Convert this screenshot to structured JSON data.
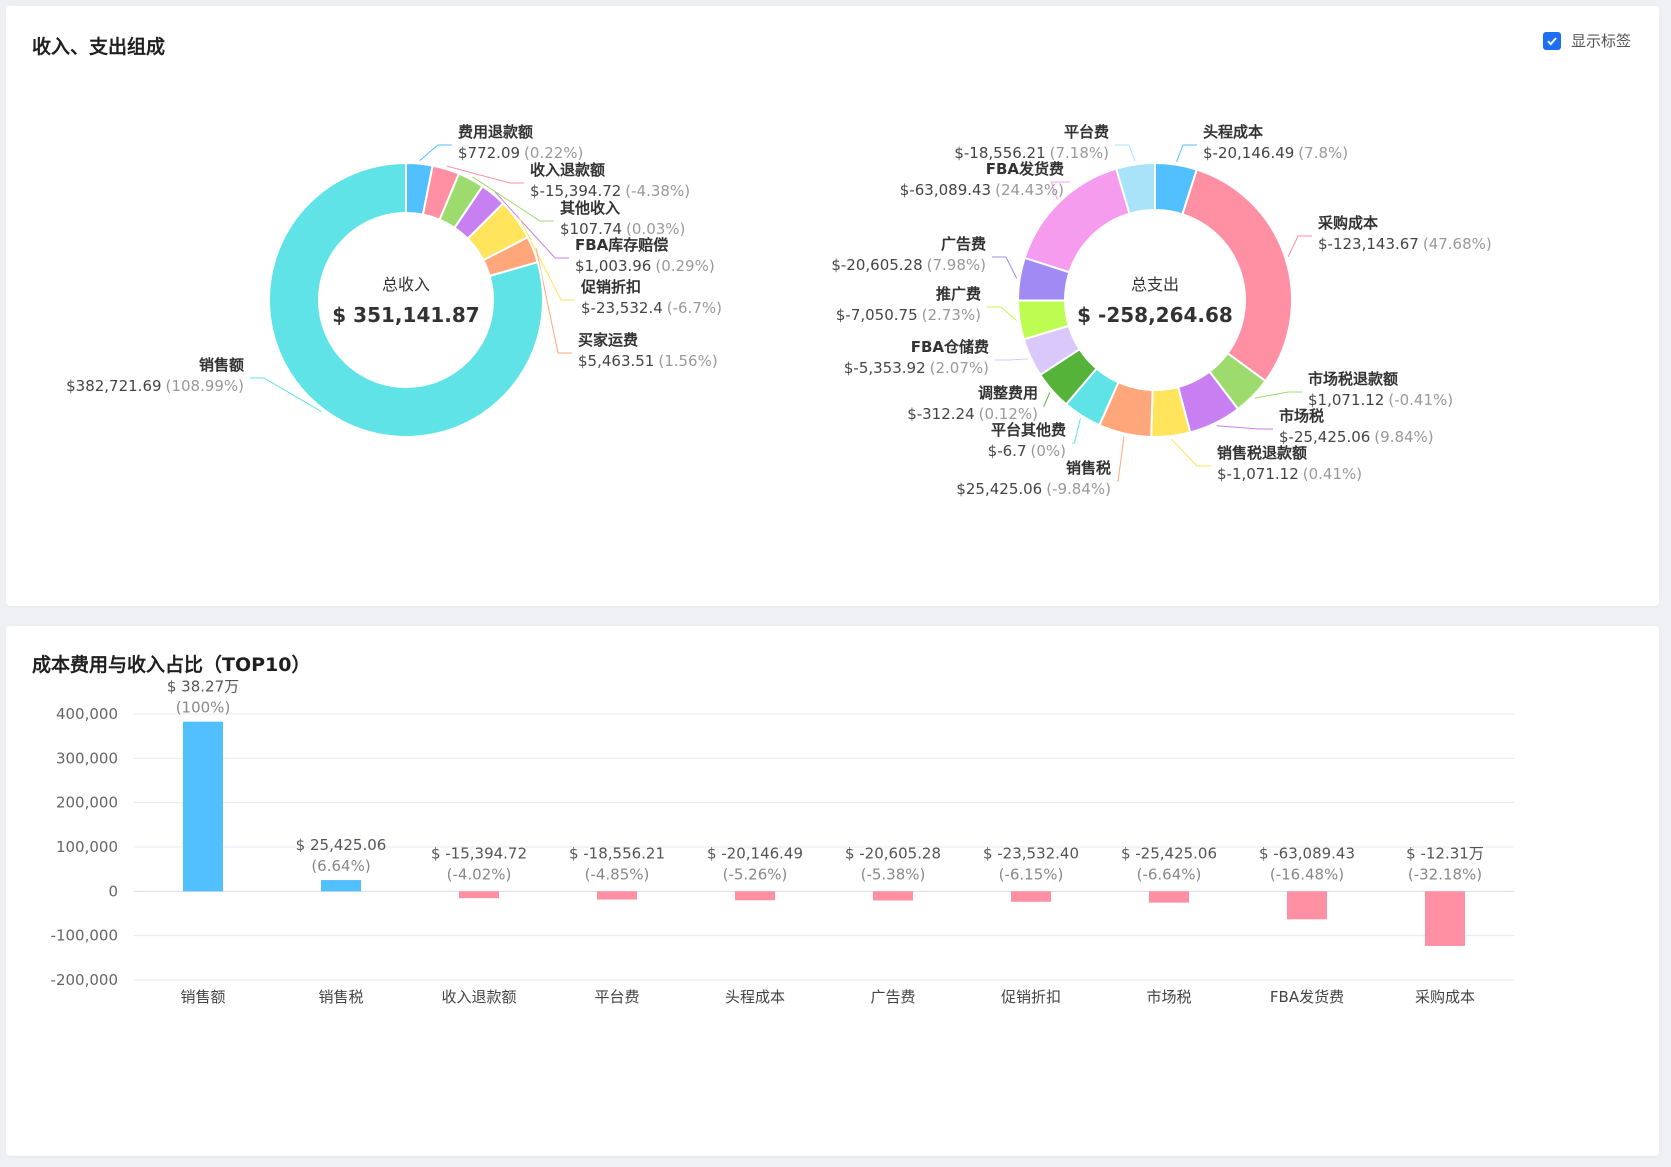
{
  "page": {
    "composition_title": "收入、支出组成",
    "show_labels_text": "显示标签",
    "top10_title": "成本费用与收入占比（TOP10）"
  },
  "colors": {
    "accent": "#1d6ff2",
    "positive_bar": "#52bfff",
    "negative_bar": "#ff8fa3"
  },
  "chart_data": [
    {
      "type": "pie",
      "variant": "donut",
      "center_title": "总收入",
      "center_value": "$ 351,141.87",
      "slices": [
        {
          "name": "费用退款额",
          "value_label": "$772.09",
          "pct_label": "(0.22%)",
          "value": 772.09,
          "color": "#52bfff"
        },
        {
          "name": "收入退款额",
          "value_label": "$-15,394.72",
          "pct_label": "(-4.38%)",
          "value": -15394.72,
          "color": "#ff8fa3"
        },
        {
          "name": "其他收入",
          "value_label": "$107.74",
          "pct_label": "(0.03%)",
          "value": 107.74,
          "color": "#9ddb6f"
        },
        {
          "name": "FBA库存赔偿",
          "value_label": "$1,003.96",
          "pct_label": "(0.29%)",
          "value": 1003.96,
          "color": "#c77ff2"
        },
        {
          "name": "促销折扣",
          "value_label": "$-23,532.4",
          "pct_label": "(-6.7%)",
          "value": -23532.4,
          "color": "#ffe45c"
        },
        {
          "name": "买家运费",
          "value_label": "$5,463.51",
          "pct_label": "(1.56%)",
          "value": 5463.51,
          "color": "#ffa77a"
        },
        {
          "name": "销售额",
          "value_label": "$382,721.69",
          "pct_label": "(108.99%)",
          "value": 382721.69,
          "color": "#5fe3e6"
        }
      ]
    },
    {
      "type": "pie",
      "variant": "donut",
      "center_title": "总支出",
      "center_value": "$ -258,264.68",
      "slices": [
        {
          "name": "头程成本",
          "value_label": "$-20,146.49",
          "pct_label": "(7.8%)",
          "value": -20146.49,
          "color": "#52bfff"
        },
        {
          "name": "采购成本",
          "value_label": "$-123,143.67",
          "pct_label": "(47.68%)",
          "value": -123143.67,
          "color": "#ff8fa3"
        },
        {
          "name": "市场税退款额",
          "value_label": "$1,071.12",
          "pct_label": "(-0.41%)",
          "value": 1071.12,
          "color": "#9ddb6f"
        },
        {
          "name": "市场税",
          "value_label": "$-25,425.06",
          "pct_label": "(9.84%)",
          "value": -25425.06,
          "color": "#c77ff2"
        },
        {
          "name": "销售税退款额",
          "value_label": "$-1,071.12",
          "pct_label": "(0.41%)",
          "value": -1071.12,
          "color": "#ffe45c"
        },
        {
          "name": "销售税",
          "value_label": "$25,425.06",
          "pct_label": "(-9.84%)",
          "value": 25425.06,
          "color": "#ffa77a"
        },
        {
          "name": "平台其他费",
          "value_label": "$-6.7",
          "pct_label": "(0%)",
          "value": -6.7,
          "color": "#5fe3e6"
        },
        {
          "name": "调整费用",
          "value_label": "$-312.24",
          "pct_label": "(0.12%)",
          "value": -312.24,
          "color": "#55b33a"
        },
        {
          "name": "FBA仓储费",
          "value_label": "$-5,353.92",
          "pct_label": "(2.07%)",
          "value": -5353.92,
          "color": "#dac8fa"
        },
        {
          "name": "推广费",
          "value_label": "$-7,050.75",
          "pct_label": "(2.73%)",
          "value": -7050.75,
          "color": "#bdfc50"
        },
        {
          "name": "广告费",
          "value_label": "$-20,605.28",
          "pct_label": "(7.98%)",
          "value": -20605.28,
          "color": "#a08bf5"
        },
        {
          "name": "FBA发货费",
          "value_label": "$-63,089.43",
          "pct_label": "(24.43%)",
          "value": -63089.43,
          "color": "#f59cef"
        },
        {
          "name": "平台费",
          "value_label": "$-18,556.21",
          "pct_label": "(7.18%)",
          "value": -18556.21,
          "color": "#a8e3fa"
        }
      ]
    },
    {
      "type": "bar",
      "categories": [
        "销售额",
        "销售税",
        "收入退款额",
        "平台费",
        "头程成本",
        "广告费",
        "促销折扣",
        "市场税",
        "FBA发货费",
        "采购成本"
      ],
      "values": [
        382721.69,
        25425.06,
        -15394.72,
        -18556.21,
        -20146.49,
        -20605.28,
        -23532.4,
        -25425.06,
        -63089.43,
        -123143.67
      ],
      "value_labels": [
        "$ 38.27万",
        "$ 25,425.06",
        "$ -15,394.72",
        "$ -18,556.21",
        "$ -20,146.49",
        "$ -20,605.28",
        "$ -23,532.40",
        "$ -25,425.06",
        "$ -63,089.43",
        "$ -12.31万"
      ],
      "pct_labels": [
        "(100%)",
        "(6.64%)",
        "(-4.02%)",
        "(-4.85%)",
        "(-5.26%)",
        "(-5.38%)",
        "(-6.15%)",
        "(-6.64%)",
        "(-16.48%)",
        "(-32.18%)"
      ],
      "yticks": [
        "400,000",
        "300,000",
        "200,000",
        "100,000",
        "0",
        "-100,000",
        "-200,000"
      ],
      "ylim": [
        -200000,
        400000
      ],
      "grid": true
    }
  ]
}
